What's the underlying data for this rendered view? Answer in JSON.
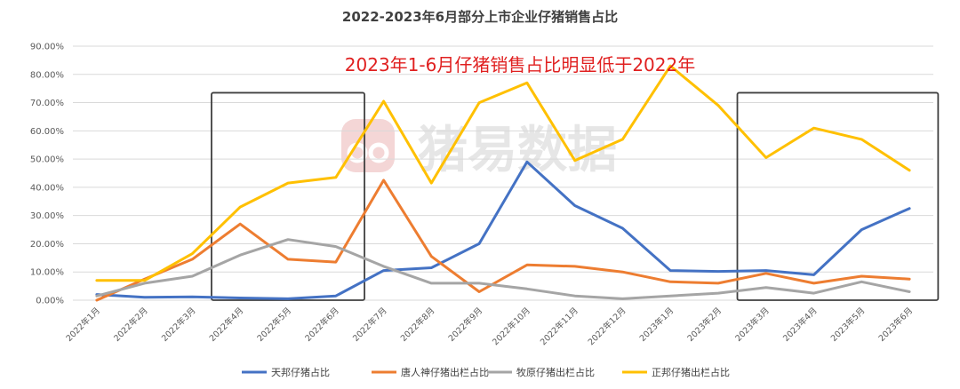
{
  "chart_data": {
    "type": "line",
    "title": "2022-2023年6月部分上市企业仔猪销售占比",
    "annotation": "2023年1-6月仔猪销售占比明显低于2022年",
    "watermark": "猪易数据",
    "categories": [
      "2022年1月",
      "2022年2月",
      "2022年3月",
      "2022年4月",
      "2022年5月",
      "2022年6月",
      "2022年7月",
      "2022年8月",
      "2022年9月",
      "2022年10月",
      "2022年11月",
      "2022年12月",
      "2023年1月",
      "2023年2月",
      "2023年3月",
      "2023年4月",
      "2023年5月",
      "2023年6月"
    ],
    "y_ticks": [
      "0.00%",
      "10.00%",
      "20.00%",
      "30.00%",
      "40.00%",
      "50.00%",
      "60.00%",
      "70.00%",
      "80.00%",
      "90.00%"
    ],
    "ylim": [
      0,
      90
    ],
    "grid": true,
    "legend_position": "bottom",
    "series": [
      {
        "name": "天邦仔猪占比",
        "color": "#4472c4",
        "values": [
          2,
          1,
          1.2,
          0.8,
          0.5,
          1.5,
          10.5,
          11.5,
          20,
          49,
          33.5,
          25.5,
          10.5,
          10.2,
          10.5,
          9,
          25,
          32.5
        ]
      },
      {
        "name": "唐人神仔猪出栏占比",
        "color": "#ed7d31",
        "values": [
          0,
          7.5,
          14.5,
          27,
          14.5,
          13.5,
          42.5,
          15.5,
          3,
          12.5,
          12,
          10,
          6.5,
          6,
          9.5,
          6,
          8.5,
          7.5
        ]
      },
      {
        "name": "牧原仔猪出栏占比",
        "color": "#a5a5a5",
        "values": [
          1.5,
          6,
          8.5,
          16,
          21.5,
          19,
          12,
          6,
          6,
          4,
          1.5,
          0.5,
          1.5,
          2.5,
          4.5,
          2.5,
          6.5,
          3
        ]
      },
      {
        "name": "正邦仔猪出栏占比",
        "color": "#ffc000",
        "values": [
          7,
          7,
          16.5,
          33,
          41.5,
          43.5,
          70.5,
          41.5,
          70,
          77,
          49.5,
          57,
          83,
          69,
          50.5,
          61,
          57,
          46
        ]
      }
    ],
    "highlight_boxes": [
      {
        "from": "2022年4月",
        "to": "2022年6月"
      },
      {
        "from": "2023年3月",
        "to": "2023年6月"
      }
    ]
  }
}
